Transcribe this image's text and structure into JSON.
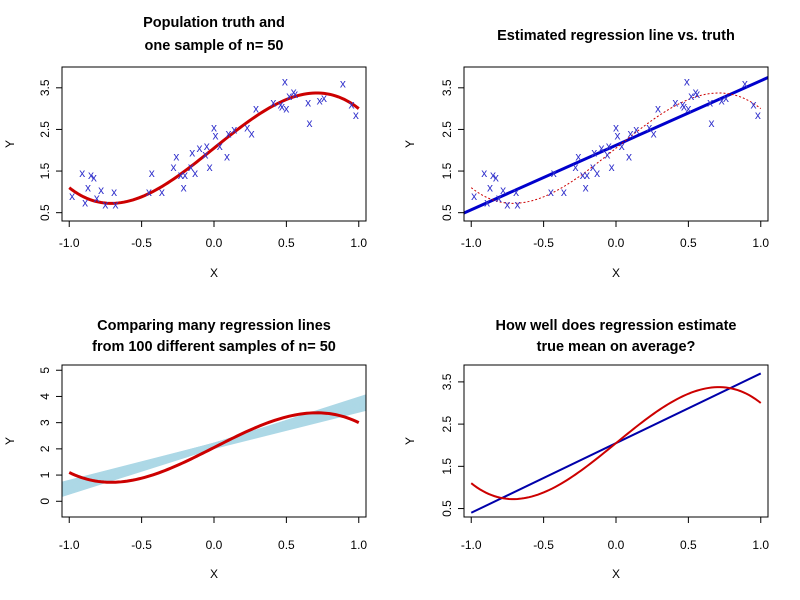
{
  "chart_data": [
    {
      "type": "scatter",
      "title_lines": [
        "Population truth and",
        "one sample of n= 50"
      ],
      "xlabel": "X",
      "ylabel": "Y",
      "xlim": [
        -1.05,
        1.05
      ],
      "ylim": [
        0.3,
        4.0
      ],
      "xticks": [
        -1.0,
        -0.5,
        0.0,
        0.5,
        1.0
      ],
      "xtick_labels": [
        "-1.0",
        "-0.5",
        "0.0",
        "0.5",
        "1.0"
      ],
      "yticks": [
        0.5,
        1.5,
        2.5,
        3.5
      ],
      "ytick_labels": [
        "0.5",
        "1.5",
        "2.5",
        "3.5"
      ],
      "truth_curve": {
        "name": "",
        "color": "#cc0000"
      },
      "point_symbol": "x",
      "point_color": "#3333cc",
      "points": {
        "x": [
          -0.98,
          -0.91,
          -0.89,
          -0.87,
          -0.85,
          -0.83,
          -0.81,
          -0.78,
          -0.75,
          -0.69,
          -0.68,
          -0.45,
          -0.43,
          -0.36,
          -0.28,
          -0.26,
          -0.23,
          -0.21,
          -0.2,
          -0.16,
          -0.15,
          -0.13,
          -0.1,
          -0.06,
          -0.05,
          -0.03,
          0.0,
          0.01,
          0.04,
          0.09,
          0.1,
          0.14,
          0.23,
          0.26,
          0.29,
          0.41,
          0.46,
          0.47,
          0.49,
          0.5,
          0.52,
          0.55,
          0.56,
          0.65,
          0.66,
          0.73,
          0.76,
          0.89,
          0.95,
          0.98
        ],
        "y": [
          0.9,
          1.45,
          0.75,
          1.1,
          1.4,
          1.35,
          0.85,
          1.05,
          0.7,
          1.0,
          0.7,
          1.0,
          1.45,
          1.0,
          1.6,
          1.85,
          1.4,
          1.1,
          1.4,
          1.6,
          1.95,
          1.45,
          2.05,
          1.9,
          2.1,
          1.6,
          2.55,
          2.35,
          2.1,
          1.85,
          2.4,
          2.5,
          2.55,
          2.4,
          3.0,
          3.15,
          3.1,
          3.05,
          3.65,
          3.0,
          3.3,
          3.4,
          3.35,
          3.15,
          2.65,
          3.2,
          3.25,
          3.6,
          3.1,
          2.85
        ]
      }
    },
    {
      "type": "scatter",
      "title_lines": [
        "Estimated regression line vs. truth"
      ],
      "xlabel": "X",
      "ylabel": "Y",
      "xlim": [
        -1.05,
        1.05
      ],
      "ylim": [
        0.3,
        4.0
      ],
      "xticks": [
        -1.0,
        -0.5,
        0.0,
        0.5,
        1.0
      ],
      "xtick_labels": [
        "-1.0",
        "-0.5",
        "0.0",
        "0.5",
        "1.0"
      ],
      "yticks": [
        0.5,
        1.5,
        2.5,
        3.5
      ],
      "ytick_labels": [
        "0.5",
        "1.5",
        "2.5",
        "3.5"
      ],
      "regression_line": {
        "intercept": 2.12,
        "slope": 1.55,
        "color": "#0000cc"
      },
      "truth_curve": {
        "color": "#cc0000",
        "style": "dotted"
      },
      "point_symbol": "x",
      "point_color": "#3333cc",
      "points_same_as_panel": 1
    },
    {
      "type": "line",
      "title_lines": [
        "Comparing many regression lines",
        "from 100 different samples of n= 50"
      ],
      "xlabel": "X",
      "ylabel": "Y",
      "xlim": [
        -1.05,
        1.05
      ],
      "ylim": [
        -0.6,
        5.2
      ],
      "xticks": [
        -1.0,
        -0.5,
        0.0,
        0.5,
        1.0
      ],
      "xtick_labels": [
        "-1.0",
        "-0.5",
        "0.0",
        "0.5",
        "1.0"
      ],
      "yticks": [
        0,
        1,
        2,
        3,
        4,
        5
      ],
      "ytick_labels": [
        "0",
        "1",
        "2",
        "3",
        "4",
        "5"
      ],
      "regression_lines": {
        "count": 100,
        "color": "#add8e6",
        "intercept_range": [
          2.02,
          2.22
        ],
        "slope_range": [
          1.38,
          1.78
        ]
      },
      "truth_curve": {
        "color": "#cc0000"
      }
    },
    {
      "type": "line",
      "title_lines": [
        "How well does regression estimate",
        "true mean on average?"
      ],
      "xlabel": "X",
      "ylabel": "Y",
      "xlim": [
        -1.05,
        1.05
      ],
      "ylim": [
        0.3,
        3.9
      ],
      "xticks": [
        -1.0,
        -0.5,
        0.0,
        0.5,
        1.0
      ],
      "xtick_labels": [
        "-1.0",
        "-0.5",
        "0.0",
        "0.5",
        "1.0"
      ],
      "yticks": [
        0.5,
        1.5,
        2.5,
        3.5
      ],
      "ytick_labels": [
        "0.5",
        "1.5",
        "2.5",
        "3.5"
      ],
      "average_regression_line": {
        "intercept": 2.05,
        "slope": 1.65,
        "color": "#0000aa"
      },
      "truth_curve": {
        "color": "#cc0000"
      }
    }
  ],
  "truth_function": {
    "form": "cubic",
    "coefficients": [
      2.05,
      2.8,
      0.0,
      -1.85
    ]
  }
}
